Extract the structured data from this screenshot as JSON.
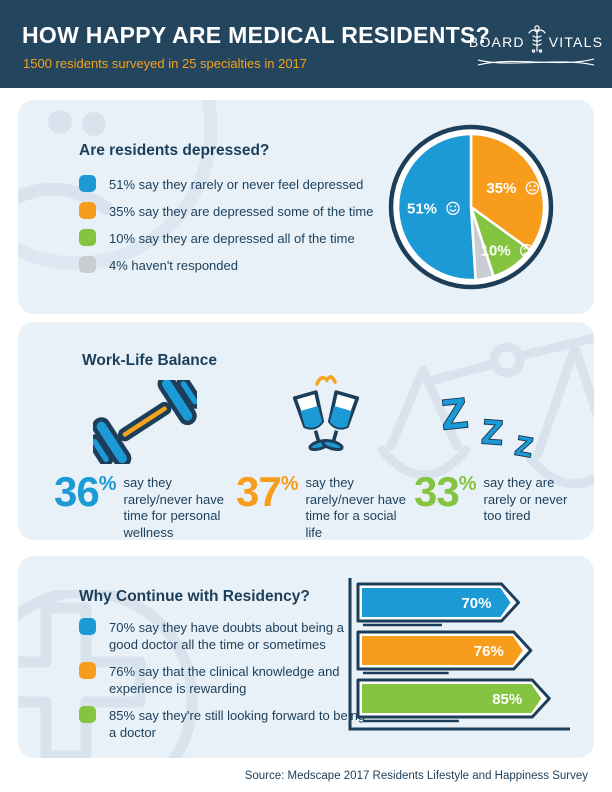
{
  "header": {
    "title": "HOW HAPPY ARE MEDICAL RESIDENTS?",
    "subtitle": "1500 residents surveyed in 25 specialties in 2017",
    "logo": {
      "word_left": "BOARD",
      "word_right": "VITALS"
    }
  },
  "colors": {
    "header_bg": "#24455E",
    "card_bg": "#E8F1F8",
    "navy": "#1C3E59",
    "blue": "#1C9AD6",
    "orange": "#F89C1C",
    "green": "#85C441",
    "gray": "#C9CDD1",
    "subtitle_orange": "#F5A31C",
    "decoration": "#D8E3EE"
  },
  "depression_section": {
    "heading": "Are residents depressed?",
    "legend": [
      {
        "color": "#1C9AD6",
        "label": "51% say they rarely or never feel depressed"
      },
      {
        "color": "#F89C1C",
        "label": "35% say they are depressed some of the time"
      },
      {
        "color": "#85C441",
        "label": "10% say they are depressed all of the time"
      },
      {
        "color": "#C9CDD1",
        "label": "4% haven't responded"
      }
    ]
  },
  "worklife_section": {
    "heading": "Work-Life Balance",
    "stats": [
      {
        "value": "36",
        "suffix": "%",
        "color": "#1C9AD6",
        "text": "say they rarely/never have time for personal wellness",
        "icon": "dumbbell-icon"
      },
      {
        "value": "37",
        "suffix": "%",
        "color": "#F89C1C",
        "text": "say they rarely/never have time for a social life",
        "icon": "champagne-glasses-icon"
      },
      {
        "value": "33",
        "suffix": "%",
        "color": "#85C441",
        "text": "say they are rarely or never too tired",
        "icon": "sleep-zzz-icon"
      }
    ]
  },
  "residency_section": {
    "heading": "Why Continue with Residency?",
    "legend": [
      {
        "color": "#1C9AD6",
        "label": "70% say they have doubts about being a good doctor all the time or sometimes"
      },
      {
        "color": "#F89C1C",
        "label": "76% say that the clinical knowledge and experience is rewarding"
      },
      {
        "color": "#85C441",
        "label": "85% say they're still looking forward to being a doctor"
      }
    ]
  },
  "footer": {
    "source": "Source: Medscape 2017 Residents Lifestyle and Happiness Survey"
  },
  "chart_data": [
    {
      "type": "pie",
      "title": "Are residents depressed?",
      "start_angle_deg": -90,
      "direction": "clockwise",
      "ring_color": "#1C3E59",
      "legend_position": "left",
      "slices": [
        {
          "label": "say they are depressed some of the time",
          "value": 35,
          "color": "#F89C1C",
          "display": "35%",
          "face": "neutral"
        },
        {
          "label": "say they are depressed all of the time",
          "value": 10,
          "color": "#85C441",
          "display": "10%",
          "face": "frown"
        },
        {
          "label": "haven't responded",
          "value": 4,
          "color": "#C9CDD1",
          "display": "",
          "face": ""
        },
        {
          "label": "say they rarely or never feel depressed",
          "value": 51,
          "color": "#1C9AD6",
          "display": "51%",
          "face": "smile"
        }
      ]
    },
    {
      "type": "bar",
      "orientation": "horizontal",
      "title": "Why Continue with Residency?",
      "categories": [
        "have doubts about being a good doctor all the time or sometimes",
        "clinical knowledge and experience is rewarding",
        "still looking forward to being a doctor"
      ],
      "values": [
        70,
        76,
        85
      ],
      "labels": [
        "70%",
        "76%",
        "85%"
      ],
      "colors": [
        "#1C9AD6",
        "#F89C1C",
        "#85C441"
      ],
      "xlim": [
        0,
        100
      ],
      "axis_color": "#1C3E59",
      "grid": false
    }
  ]
}
